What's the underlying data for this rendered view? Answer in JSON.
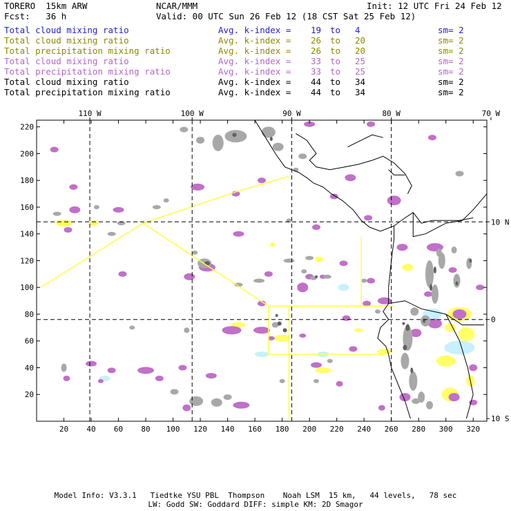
{
  "header": {
    "model": "TORERO  15km ARW",
    "org": "NCAR/MMM",
    "init": "Init: 12 UTC Fri 24 Feb 12",
    "fcst": "Fcst:   36 h",
    "valid": "Valid: 00 UTC Sun 26 Feb 12 (18 CST Sat 25 Feb 12)"
  },
  "legend": [
    {
      "field": "Total cloud mixing ratio",
      "avg": "Avg. k-index =",
      "from": "19",
      "to_word": "to",
      "to": "4",
      "sm": "sm= 2",
      "color": "#1f1fcc"
    },
    {
      "field": "Total cloud mixing ratio",
      "avg": "Avg. k-index =",
      "from": "26",
      "to_word": "to",
      "to": "20",
      "sm": "sm= 2",
      "color": "#8a8a00"
    },
    {
      "field": "Total precipitation mixing ratio",
      "avg": "Avg. k-index =",
      "from": "26",
      "to_word": "to",
      "to": "20",
      "sm": "sm= 2",
      "color": "#8a8a00"
    },
    {
      "field": "Total cloud mixing ratio",
      "avg": "Avg. k-index =",
      "from": "33",
      "to_word": "to",
      "to": "25",
      "sm": "sm= 2",
      "color": "#b566c8"
    },
    {
      "field": "Total precipitation mixing ratio",
      "avg": "Avg. k-index =",
      "from": "33",
      "to_word": "to",
      "to": "25",
      "sm": "sm= 2",
      "color": "#b566c8"
    },
    {
      "field": "Total cloud mixing ratio",
      "avg": "Avg. k-index =",
      "from": "44",
      "to_word": "to",
      "to": "34",
      "sm": "sm= 2",
      "color": "#000000"
    },
    {
      "field": "Total precipitation mixing ratio",
      "avg": "Avg. k-index =",
      "from": "44",
      "to_word": "to",
      "to": "34",
      "sm": "sm= 2",
      "color": "#000000"
    }
  ],
  "map": {
    "x_axis": {
      "min": 0,
      "max": 330,
      "ticks": [
        "20",
        "40",
        "60",
        "80",
        "100",
        "120",
        "140",
        "160",
        "180",
        "200",
        "220",
        "240",
        "260",
        "280",
        "300",
        "320"
      ]
    },
    "y_axis": {
      "min": 0,
      "max": 225,
      "ticks": [
        "20",
        "40",
        "60",
        "80",
        "100",
        "120",
        "140",
        "160",
        "180",
        "200",
        "220"
      ]
    },
    "lon_labels": [
      {
        "text": "110 W",
        "x": 39
      },
      {
        "text": "100 W",
        "x": 114
      },
      {
        "text": "90 W",
        "x": 187
      },
      {
        "text": "80 W",
        "x": 260
      },
      {
        "text": "70 W",
        "x": 333
      }
    ],
    "lat_labels": [
      {
        "text": "10 N",
        "y": 149
      },
      {
        "text": "0",
        "y": 76
      },
      {
        "text": "10 S",
        "y": 2
      }
    ],
    "colors": {
      "yellow": "#ffff66",
      "purple": "#c070c8",
      "gray": "#a8a8a8",
      "dark_gray": "#606060",
      "cyan": "#c8f0ff",
      "yellow_line": "#ffff44",
      "frame": "#000000"
    }
  },
  "footer": {
    "line1": "Model Info: V3.3.1   Tiedtke YSU PBL  Thompson    Noah LSM  15 km,   44 levels,   78 sec",
    "line2": "LW: Godd SW: Goddard DIFF: simple KM: 2D Smagor"
  }
}
